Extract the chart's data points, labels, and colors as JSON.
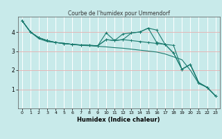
{
  "title": "Courbe de l'humidex pour Ummendorf",
  "xlabel": "Humidex (Indice chaleur)",
  "bg_color": "#c8eaea",
  "grid_color": "#ffffff",
  "line_color": "#1a7a6e",
  "xlim": [
    -0.5,
    23.5
  ],
  "ylim": [
    0,
    4.8
  ],
  "yticks": [
    1,
    2,
    3,
    4
  ],
  "xticks": [
    0,
    1,
    2,
    3,
    4,
    5,
    6,
    7,
    8,
    9,
    10,
    11,
    12,
    13,
    14,
    15,
    16,
    17,
    18,
    19,
    20,
    21,
    22,
    23
  ],
  "series": [
    {
      "x": [
        0,
        1,
        2,
        3,
        4,
        5,
        6,
        7,
        8,
        9,
        10,
        11,
        12,
        13,
        14,
        15,
        16,
        17,
        18,
        19,
        20,
        21,
        22,
        23
      ],
      "y": [
        4.6,
        4.0,
        3.65,
        3.5,
        3.45,
        3.4,
        3.35,
        3.3,
        3.28,
        3.25,
        3.22,
        3.18,
        3.15,
        3.1,
        3.05,
        3.0,
        2.95,
        2.85,
        2.7,
        2.55,
        2.0,
        1.3,
        1.1,
        0.65
      ],
      "marker": false
    },
    {
      "x": [
        0,
        1,
        2,
        3,
        4,
        5,
        6,
        7,
        8,
        9,
        10,
        11,
        12,
        13,
        14,
        15,
        16,
        17,
        18,
        19,
        20,
        21,
        22,
        23
      ],
      "y": [
        4.6,
        4.0,
        3.7,
        3.55,
        3.45,
        3.4,
        3.35,
        3.32,
        3.3,
        3.28,
        3.95,
        3.55,
        3.9,
        3.95,
        4.0,
        4.2,
        4.1,
        3.35,
        3.3,
        2.05,
        2.3,
        1.35,
        1.1,
        0.65
      ],
      "marker": true
    },
    {
      "x": [
        0,
        1,
        2,
        3,
        4,
        5,
        6,
        7,
        8,
        9,
        10,
        11,
        12,
        13,
        14,
        15,
        16,
        17,
        18,
        19,
        20,
        21,
        22,
        23
      ],
      "y": [
        4.6,
        4.0,
        3.7,
        3.55,
        3.45,
        3.4,
        3.35,
        3.32,
        3.3,
        3.28,
        3.6,
        3.55,
        3.6,
        3.95,
        4.0,
        4.2,
        3.45,
        3.35,
        2.9,
        2.05,
        2.3,
        1.35,
        1.1,
        0.65
      ],
      "marker": true
    },
    {
      "x": [
        0,
        1,
        2,
        3,
        4,
        5,
        6,
        7,
        8,
        9,
        10,
        11,
        12,
        13,
        14,
        15,
        16,
        17,
        18,
        19,
        20,
        21,
        22,
        23
      ],
      "y": [
        4.6,
        4.0,
        3.7,
        3.55,
        3.45,
        3.4,
        3.35,
        3.32,
        3.3,
        3.28,
        3.6,
        3.55,
        3.6,
        3.55,
        3.5,
        3.45,
        3.4,
        3.35,
        2.9,
        2.05,
        2.3,
        1.35,
        1.1,
        0.65
      ],
      "marker": true
    }
  ]
}
